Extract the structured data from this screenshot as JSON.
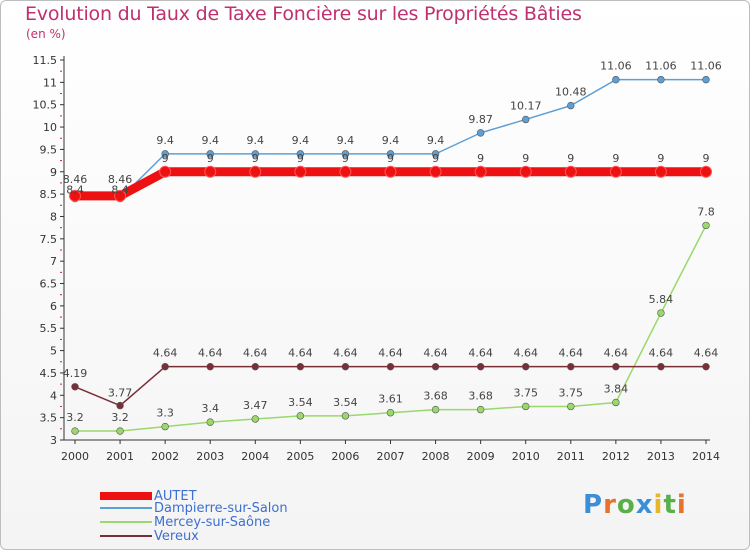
{
  "title": "Evolution du Taux de Taxe Foncière sur les Propriétés Bâties",
  "unit": "(en %)",
  "logo": "Proxiti",
  "logo_colors": [
    "#3b8fd6",
    "#e8722a",
    "#59b04a",
    "#3b8fd6",
    "#e8b62a",
    "#59b04a",
    "#e8722a"
  ],
  "chart_data": {
    "type": "line",
    "title": "Evolution du Taux de Taxe Foncière sur les Propriétés Bâties",
    "ylabel": "(en %)",
    "ylim": [
      3,
      11.5
    ],
    "yticks": [
      "3",
      "3.5",
      "4",
      "4.5",
      "5",
      "5.5",
      "6",
      "6.5",
      "7",
      "7.5",
      "8",
      "8.5",
      "9",
      "9.5",
      "10",
      "10.5",
      "11",
      "11.5"
    ],
    "x": [
      "2000",
      "2001",
      "2002",
      "2003",
      "2004",
      "2005",
      "2006",
      "2007",
      "2008",
      "2009",
      "2010",
      "2011",
      "2012",
      "2013",
      "2014"
    ],
    "series": [
      {
        "name": "AUTET",
        "color": "#ee1111",
        "values": [
          8.46,
          8.46,
          9,
          9,
          9,
          9,
          9,
          9,
          9,
          9,
          9,
          9,
          9,
          9,
          9
        ],
        "labels": [
          "8.46",
          "8.46",
          "9",
          "9",
          "9",
          "9",
          "9",
          "9",
          "9",
          "9",
          "9",
          "9",
          "9",
          "9",
          "9"
        ]
      },
      {
        "name": "Dampierre-sur-Salon",
        "color": "#5e9fd5",
        "values": [
          8.4,
          8.4,
          9.4,
          9.4,
          9.4,
          9.4,
          9.4,
          9.4,
          9.4,
          9.87,
          10.17,
          10.48,
          11.06,
          11.06,
          11.06
        ],
        "labels": [
          "8.4",
          "8.4",
          "9.4",
          "9.4",
          "9.4",
          "9.4",
          "9.4",
          "9.4",
          "9.4",
          "9.87",
          "10.17",
          "10.48",
          "11.06",
          "11.06",
          "11.06"
        ]
      },
      {
        "name": "Mercey-sur-Saône",
        "color": "#99d86a",
        "values": [
          3.2,
          3.2,
          3.3,
          3.4,
          3.47,
          3.54,
          3.54,
          3.61,
          3.68,
          3.68,
          3.75,
          3.75,
          3.84,
          5.84,
          7.8
        ],
        "labels": [
          "3.2",
          "3.2",
          "3.3",
          "3.4",
          "3.47",
          "3.54",
          "3.54",
          "3.61",
          "3.68",
          "3.68",
          "3.75",
          "3.75",
          "3.84",
          "5.84",
          "7.8"
        ]
      },
      {
        "name": "Vereux",
        "color": "#7a2e36",
        "values": [
          4.19,
          3.77,
          4.64,
          4.64,
          4.64,
          4.64,
          4.64,
          4.64,
          4.64,
          4.64,
          4.64,
          4.64,
          4.64,
          4.64,
          4.64
        ],
        "labels": [
          "4.19",
          "3.77",
          "4.64",
          "4.64",
          "4.64",
          "4.64",
          "4.64",
          "4.64",
          "4.64",
          "4.64",
          "4.64",
          "4.64",
          "4.64",
          "4.64",
          "4.64"
        ]
      }
    ],
    "legend": {
      "position": "bottom-left"
    },
    "grid": false
  }
}
